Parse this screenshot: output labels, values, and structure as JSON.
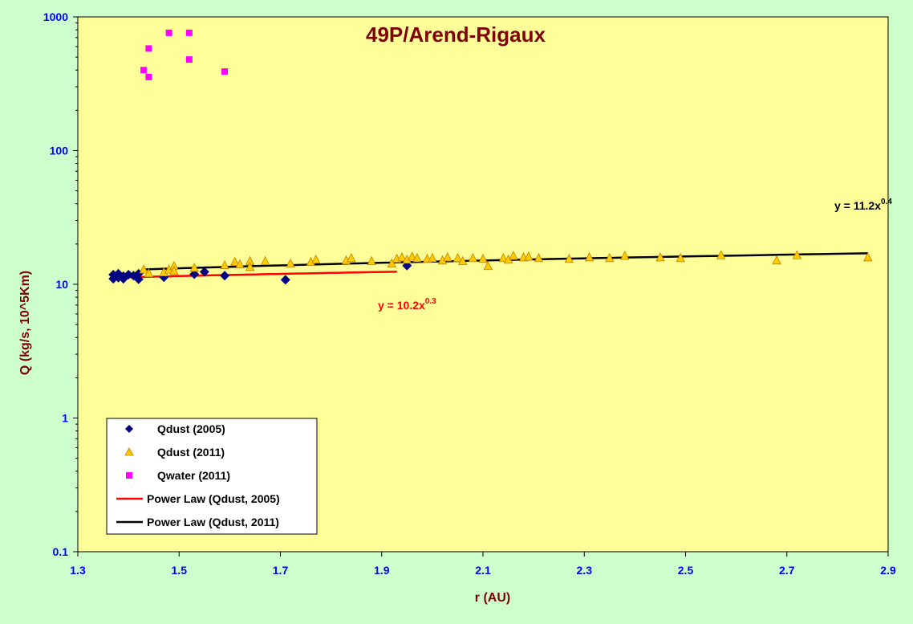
{
  "chart_data": {
    "type": "scatter",
    "title": "49P/Arend-Rigaux",
    "xlabel": "r (AU)",
    "ylabel": "Q (kg/s, 10^5Km)",
    "xlim": [
      1.3,
      2.9
    ],
    "ylim": [
      0.1,
      1000
    ],
    "y_scale": "log",
    "x_ticks": [
      "1.3",
      "1.5",
      "1.7",
      "1.9",
      "2.1",
      "2.3",
      "2.5",
      "2.7",
      "2.9"
    ],
    "y_ticks": [
      "0.1",
      "1",
      "10",
      "100",
      "1000"
    ],
    "plot_background": "#ffff99",
    "page_background": "#ccffcc",
    "grid": false,
    "legend_position": "bottom-left",
    "series": [
      {
        "name": "Qdust (2005)",
        "marker": "diamond",
        "color": "#000080",
        "points": [
          [
            1.37,
            11.0
          ],
          [
            1.37,
            11.8
          ],
          [
            1.38,
            12.0
          ],
          [
            1.38,
            11.2
          ],
          [
            1.39,
            11.0
          ],
          [
            1.39,
            11.5
          ],
          [
            1.4,
            11.8
          ],
          [
            1.41,
            11.6
          ],
          [
            1.42,
            12.0
          ],
          [
            1.42,
            10.9
          ],
          [
            1.47,
            11.3
          ],
          [
            1.53,
            11.9
          ],
          [
            1.55,
            12.4
          ],
          [
            1.59,
            11.6
          ],
          [
            1.71,
            10.8
          ],
          [
            1.95,
            13.8
          ]
        ]
      },
      {
        "name": "Qdust (2011)",
        "marker": "triangle",
        "color": "#ffcc00",
        "points": [
          [
            1.43,
            12.8
          ],
          [
            1.44,
            12.0
          ],
          [
            1.47,
            12.2
          ],
          [
            1.48,
            12.8
          ],
          [
            1.49,
            13.6
          ],
          [
            1.49,
            12.5
          ],
          [
            1.53,
            13.2
          ],
          [
            1.59,
            13.8
          ],
          [
            1.61,
            14.6
          ],
          [
            1.62,
            14.0
          ],
          [
            1.64,
            14.8
          ],
          [
            1.64,
            13.4
          ],
          [
            1.67,
            14.8
          ],
          [
            1.72,
            14.2
          ],
          [
            1.76,
            14.6
          ],
          [
            1.77,
            15.2
          ],
          [
            1.83,
            15.0
          ],
          [
            1.84,
            15.6
          ],
          [
            1.88,
            14.8
          ],
          [
            1.92,
            14.2
          ],
          [
            1.93,
            15.4
          ],
          [
            1.94,
            15.8
          ],
          [
            1.95,
            15.2
          ],
          [
            1.96,
            16.0
          ],
          [
            1.97,
            15.6
          ],
          [
            1.99,
            15.4
          ],
          [
            2.0,
            15.6
          ],
          [
            2.02,
            15.0
          ],
          [
            2.03,
            15.8
          ],
          [
            2.05,
            15.6
          ],
          [
            2.06,
            14.8
          ],
          [
            2.08,
            15.6
          ],
          [
            2.1,
            15.4
          ],
          [
            2.11,
            13.6
          ],
          [
            2.14,
            15.6
          ],
          [
            2.15,
            15.2
          ],
          [
            2.16,
            16.2
          ],
          [
            2.18,
            15.8
          ],
          [
            2.19,
            16.0
          ],
          [
            2.21,
            15.6
          ],
          [
            2.27,
            15.4
          ],
          [
            2.31,
            15.8
          ],
          [
            2.35,
            15.6
          ],
          [
            2.38,
            16.2
          ],
          [
            2.45,
            15.8
          ],
          [
            2.49,
            15.6
          ],
          [
            2.57,
            16.4
          ],
          [
            2.68,
            15.0
          ],
          [
            2.72,
            16.4
          ],
          [
            2.86,
            15.8
          ]
        ]
      },
      {
        "name": "Qwater (2011)",
        "marker": "square",
        "color": "#ff00ff",
        "points": [
          [
            1.43,
            400
          ],
          [
            1.44,
            355
          ],
          [
            1.44,
            580
          ],
          [
            1.48,
            760
          ],
          [
            1.52,
            480
          ],
          [
            1.52,
            760
          ],
          [
            1.59,
            390
          ]
        ]
      }
    ],
    "trendlines": [
      {
        "name": "Power Law (Qdust, 2005)",
        "color": "#ff0000",
        "coef": 10.2,
        "exp": 0.3,
        "x_range": [
          1.37,
          1.93
        ],
        "equation": "y = 10.2x",
        "equation_exp": "0.3"
      },
      {
        "name": "Power Law (Qdust, 2011)",
        "color": "#000000",
        "coef": 11.2,
        "exp": 0.4,
        "x_range": [
          1.43,
          2.86
        ],
        "equation": "y = 11.2x",
        "equation_exp": "0.4"
      }
    ]
  }
}
